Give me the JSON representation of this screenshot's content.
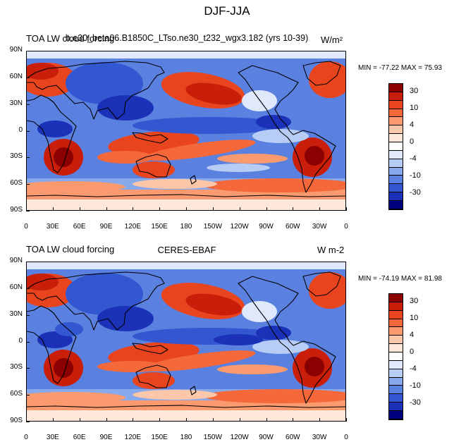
{
  "figure_title": "DJF-JJA",
  "panels": [
    {
      "left_title": "TOA LW cloud forcing",
      "center_title": "b.e30_beta06.B1850C_LTso.ne30_t232_wgx3.182 (yrs 10-39)",
      "right_title": "W/m²",
      "stats": "MIN = -77.22 MAX =  75.93"
    },
    {
      "left_title": "TOA LW cloud forcing",
      "center_title": "CERES-EBAF",
      "right_title": "W m-2",
      "stats": "MIN = -74.19 MAX =  81.98"
    }
  ],
  "lat_ticks": [
    "90N",
    "60N",
    "30N",
    "0",
    "30S",
    "60S",
    "90S"
  ],
  "lon_ticks": [
    "0",
    "30E",
    "60E",
    "90E",
    "120E",
    "150E",
    "180",
    "150W",
    "120W",
    "90W",
    "60W",
    "30W",
    "0"
  ],
  "colorbar_labels": [
    "30",
    "10",
    "4",
    "0",
    "-4",
    "-10",
    "-30"
  ],
  "colorbar_colors": [
    "#8b0000",
    "#c81e0a",
    "#e8451e",
    "#f5683a",
    "#fa9a6e",
    "#fcc7a8",
    "#fde8d9",
    "#ffffff",
    "#dfe9fb",
    "#b7cdf5",
    "#88a9eb",
    "#5a80e0",
    "#3356d1",
    "#1b32b8",
    "#00007f"
  ],
  "chart_data": {
    "type": "heatmap",
    "projection": "cylindrical equidistant",
    "variable": "TOA LW cloud forcing",
    "units": "W/m²",
    "contour_levels": [
      -30,
      -20,
      -10,
      -6,
      -4,
      -2,
      0,
      2,
      4,
      6,
      10,
      20,
      30
    ],
    "maps": [
      {
        "name": "b.e30_beta06.B1850C_LTso.ne30_t232_wgx3.182 (yrs 10-39)",
        "min": -77.22,
        "max": 75.93
      },
      {
        "name": "CERES-EBAF",
        "min": -74.19,
        "max": 81.98
      }
    ]
  }
}
